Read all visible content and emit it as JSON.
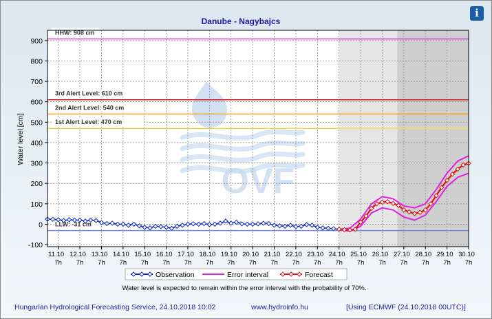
{
  "chart_data": {
    "type": "line",
    "title": "Danube - Nagybajcs",
    "ylabel": "Water level [cm]",
    "ylim": [
      -110,
      950
    ],
    "yticks": [
      -100,
      0,
      100,
      200,
      300,
      400,
      500,
      600,
      700,
      800,
      900
    ],
    "ytick_labels": [
      "-100",
      "0",
      "100",
      "200",
      "300",
      "400",
      "500",
      "600",
      "700",
      "800",
      "900"
    ],
    "xrange_days": [
      10.5,
      30.0
    ],
    "xticks": [
      {
        "date": "11.10",
        "time": "7h",
        "day": 11
      },
      {
        "date": "12.10",
        "time": "7h",
        "day": 12
      },
      {
        "date": "13.10",
        "time": "7h",
        "day": 13
      },
      {
        "date": "14.10",
        "time": "7h",
        "day": 14
      },
      {
        "date": "15.10",
        "time": "7h",
        "day": 15
      },
      {
        "date": "16.10",
        "time": "7h",
        "day": 16
      },
      {
        "date": "17.10",
        "time": "7h",
        "day": 17
      },
      {
        "date": "18.10",
        "time": "7h",
        "day": 18
      },
      {
        "date": "19.10",
        "time": "7h",
        "day": 19
      },
      {
        "date": "20.10",
        "time": "7h",
        "day": 20
      },
      {
        "date": "21.10",
        "time": "7h",
        "day": 21
      },
      {
        "date": "22.10",
        "time": "7h",
        "day": 22
      },
      {
        "date": "23.10",
        "time": "7h",
        "day": 23
      },
      {
        "date": "24.10",
        "time": "7h",
        "day": 24
      },
      {
        "date": "25.10",
        "time": "7h",
        "day": 25
      },
      {
        "date": "26.10",
        "time": "7h",
        "day": 26
      },
      {
        "date": "27.10",
        "time": "7h",
        "day": 27
      },
      {
        "date": "28.10",
        "time": "7h",
        "day": 28
      },
      {
        "date": "29.10",
        "time": "7h",
        "day": 29
      },
      {
        "date": "30.10",
        "time": "7h",
        "day": 30
      }
    ],
    "shaded_regions": [
      {
        "from_day": 24.0,
        "to_day": 26.7,
        "color": "#e6e6e6"
      },
      {
        "from_day": 26.7,
        "to_day": 30.0,
        "color": "#cfcfcf"
      }
    ],
    "reference_lines": [
      {
        "label": "HHW: 908 cm",
        "value": 908,
        "color": "#cc44cc"
      },
      {
        "label": "3rd Alert Level: 610 cm",
        "value": 610,
        "color": "#d92020"
      },
      {
        "label": "2nd Alert Level: 540 cm",
        "value": 540,
        "color": "#f0a020"
      },
      {
        "label": "1st Alert Level: 470 cm",
        "value": 470,
        "color": "#f0e040"
      },
      {
        "label": "LLW: -31 cm",
        "value": -31,
        "color": "#6f86e0"
      }
    ],
    "series": [
      {
        "name": "Observation",
        "color": "#0a28c8",
        "x": [
          10.5,
          10.75,
          11.0,
          11.25,
          11.5,
          11.75,
          12.0,
          12.25,
          12.5,
          12.75,
          13.0,
          13.25,
          13.5,
          13.75,
          14.0,
          14.25,
          14.5,
          14.75,
          15.0,
          15.25,
          15.5,
          15.75,
          16.0,
          16.25,
          16.5,
          16.75,
          17.0,
          17.25,
          17.5,
          17.75,
          18.0,
          18.25,
          18.5,
          18.75,
          19.0,
          19.25,
          19.5,
          19.75,
          20.0,
          20.25,
          20.5,
          20.75,
          21.0,
          21.25,
          21.5,
          21.75,
          22.0,
          22.25,
          22.5,
          22.75,
          23.0,
          23.25,
          23.5,
          23.75,
          24.0
        ],
        "y": [
          25,
          24,
          22,
          18,
          22,
          20,
          20,
          15,
          20,
          18,
          8,
          3,
          5,
          0,
          0,
          -5,
          0,
          -8,
          -15,
          -18,
          -10,
          -12,
          -15,
          -20,
          -10,
          -5,
          0,
          2,
          0,
          3,
          -2,
          0,
          5,
          15,
          5,
          10,
          2,
          0,
          0,
          2,
          5,
          3,
          -5,
          -8,
          -10,
          -5,
          -12,
          -10,
          -2,
          -5,
          -15,
          -18,
          -20,
          -22,
          -25
        ]
      },
      {
        "name": "Error interval",
        "color": "#e020e0",
        "x": [
          24.0,
          24.5,
          25.0,
          25.5,
          26.0,
          26.5,
          27.0,
          27.5,
          28.0,
          28.5,
          29.0,
          29.5,
          30.0
        ],
        "upper": [
          -25,
          -20,
          25,
          100,
          135,
          125,
          90,
          80,
          100,
          170,
          250,
          310,
          335
        ],
        "lower": [
          -25,
          -35,
          -10,
          55,
          80,
          70,
          35,
          20,
          45,
          110,
          185,
          230,
          250
        ]
      },
      {
        "name": "Forecast",
        "color": "#e01010",
        "x": [
          24.0,
          24.25,
          24.5,
          24.75,
          25.0,
          25.25,
          25.5,
          25.75,
          26.0,
          26.25,
          26.5,
          26.75,
          27.0,
          27.25,
          27.5,
          27.75,
          28.0,
          28.25,
          28.5,
          28.75,
          29.0,
          29.25,
          29.5,
          29.75,
          30.0
        ],
        "y": [
          -25,
          -27,
          -28,
          -25,
          10,
          40,
          78,
          100,
          108,
          110,
          102,
          92,
          70,
          60,
          52,
          58,
          70,
          100,
          140,
          180,
          215,
          245,
          270,
          290,
          298
        ]
      }
    ],
    "legend": {
      "position": "bottom"
    },
    "note": "Water level is expected to remain within the error interval with the probability of 70%.",
    "grid": true
  },
  "watermark": {
    "text": "OVF"
  },
  "footer": {
    "org": "Hungarian Hydrological Forecasting Service, 24.10.2018 10:02",
    "url": "www.hydroinfo.hu",
    "model": "[Using ECMWF (24.10.2018  00UTC)]"
  },
  "info_button": {
    "label": "i",
    "icon": "info-icon"
  }
}
